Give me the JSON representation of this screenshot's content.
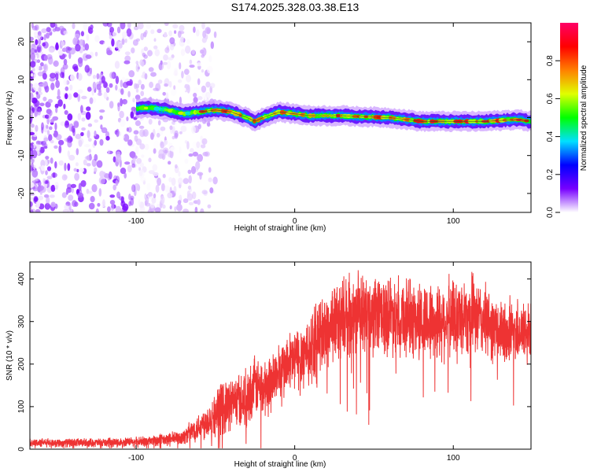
{
  "page": {
    "title": "S174.2025.328.03.38.E13"
  },
  "colorbar": {
    "label": "Normalized spectral amplitude",
    "range": [
      0,
      1
    ],
    "tick_values": [
      0.0,
      0.2,
      0.4,
      0.6,
      0.8
    ],
    "tick_labels": [
      "0.0",
      "0.2",
      "0.4",
      "0.6",
      "0.8"
    ],
    "colors": [
      "#ffffff",
      "#7700ff",
      "#0000ff",
      "#00e0ff",
      "#00ff00",
      "#e0ff00",
      "#ff8000",
      "#ff0000",
      "#ff0066"
    ]
  },
  "chart_data": [
    {
      "type": "heatmap",
      "title": "S174.2025.328.03.38.E13",
      "xlabel": "Height of straight line (km)",
      "ylabel": "Frequency (Hz)",
      "xlim": [
        -167,
        149
      ],
      "ylim": [
        -25,
        25
      ],
      "x_ticks": [
        -100,
        0,
        100
      ],
      "x_tick_labels": [
        "-100",
        "0",
        "100"
      ],
      "y_ticks": [
        -20,
        -10,
        0,
        10,
        20
      ],
      "y_tick_labels": [
        "-20",
        "-10",
        "0",
        "10",
        "20"
      ],
      "colorbar_label": "Normalized spectral amplitude",
      "ridge": {
        "x": [
          -100,
          -90,
          -80,
          -70,
          -60,
          -50,
          -40,
          -30,
          -25,
          -20,
          -10,
          0,
          10,
          20,
          30,
          40,
          60,
          80,
          100,
          120,
          140,
          149
        ],
        "frequency": [
          2.5,
          2.5,
          2.0,
          1.0,
          1.5,
          2.0,
          1.5,
          0.0,
          -1.0,
          0.0,
          1.5,
          1.0,
          0.5,
          0.5,
          0.5,
          0.3,
          0.0,
          -1.0,
          -1.0,
          -1.0,
          -0.5,
          -1.0
        ]
      },
      "noise_region_x": [
        -167,
        -65
      ]
    },
    {
      "type": "line",
      "xlabel": "Height of straight line (km)",
      "ylabel": "SNR (10 * v/v)",
      "xlim": [
        -167,
        149
      ],
      "ylim": [
        0,
        440
      ],
      "x_ticks": [
        -100,
        0,
        100
      ],
      "x_tick_labels": [
        "-100",
        "0",
        "100"
      ],
      "y_ticks": [
        0,
        100,
        200,
        300,
        400
      ],
      "y_tick_labels": [
        "0",
        "100",
        "200",
        "300",
        "400"
      ],
      "series": [
        {
          "name": "SNR",
          "color": "#ee3333",
          "x": [
            -167,
            -150,
            -120,
            -100,
            -90,
            -80,
            -70,
            -60,
            -50,
            -45,
            -40,
            -30,
            -25,
            -20,
            -10,
            0,
            10,
            20,
            25,
            30,
            40,
            50,
            60,
            70,
            80,
            90,
            100,
            110,
            120,
            130,
            140,
            149
          ],
          "mean": [
            15,
            15,
            15,
            17,
            20,
            22,
            30,
            55,
            80,
            100,
            110,
            120,
            150,
            140,
            180,
            210,
            240,
            280,
            300,
            310,
            320,
            310,
            320,
            310,
            300,
            300,
            310,
            320,
            300,
            270,
            280,
            270
          ],
          "spread": [
            12,
            12,
            12,
            14,
            16,
            18,
            22,
            40,
            60,
            80,
            70,
            80,
            80,
            80,
            80,
            90,
            100,
            110,
            110,
            110,
            110,
            110,
            110,
            110,
            110,
            110,
            110,
            110,
            100,
            90,
            90,
            90
          ]
        }
      ]
    }
  ]
}
